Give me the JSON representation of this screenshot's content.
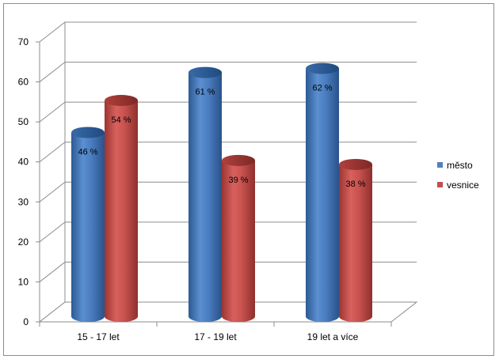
{
  "chart_data": {
    "type": "bar",
    "categories": [
      "15 - 17 let",
      "17 - 19 let",
      "19 let a více"
    ],
    "series": [
      {
        "name": "město",
        "values": [
          46,
          61,
          62
        ],
        "labels": [
          "46 %",
          "61 %",
          "62 %"
        ],
        "color": "#4f81bd"
      },
      {
        "name": "vesnice",
        "values": [
          54,
          39,
          38
        ],
        "labels": [
          "54 %",
          "39 %",
          "38 %"
        ],
        "color": "#c0504d"
      }
    ],
    "yticks": [
      "0",
      "10",
      "20",
      "30",
      "40",
      "50",
      "60",
      "70"
    ],
    "ylim": [
      0,
      70
    ],
    "grid": true,
    "legend": "right"
  }
}
